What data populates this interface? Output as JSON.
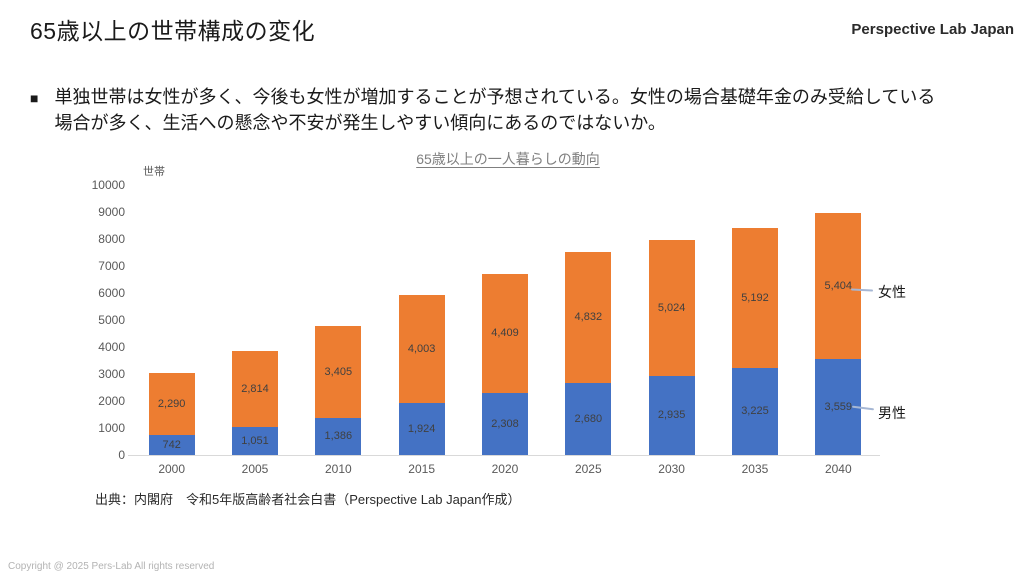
{
  "slide": {
    "title": "65歳以上の世帯構成の変化",
    "logo": "Perspective Lab Japan",
    "bullet": {
      "marker": "■",
      "lines": [
        "単独世帯は女性が多く、今後も女性が増加することが予想されている。女性の場合基礎年金のみ受給している",
        "場合が多く、生活への懸念や不安が発生しやすい傾向にあるのではないか。"
      ]
    },
    "source": "出典：内閣府　令和5年版高齢者社会白書（Perspective Lab Japan作成）",
    "copyright": "Copyright @ 2025 Pers-Lab All rights reserved"
  },
  "chart_data": {
    "type": "bar",
    "stacked": true,
    "title": "65歳以上の一人暮らしの動向",
    "unit_label": "世帯",
    "categories": [
      "2000",
      "2005",
      "2010",
      "2015",
      "2020",
      "2025",
      "2030",
      "2035",
      "2040"
    ],
    "series": [
      {
        "name": "男性",
        "color": "#4472C4",
        "values": [
          742,
          1051,
          1386,
          1924,
          2308,
          2680,
          2935,
          3225,
          3559
        ]
      },
      {
        "name": "女性",
        "color": "#ED7D31",
        "values": [
          2290,
          2814,
          3405,
          4003,
          4409,
          4832,
          5024,
          5192,
          5404
        ]
      }
    ],
    "ylim": [
      0,
      10000
    ],
    "ytick_step": 1000,
    "grid": false,
    "legend_position": "right-annotations",
    "annotations": [
      {
        "label": "女性",
        "series": "女性"
      },
      {
        "label": "男性",
        "series": "男性"
      }
    ],
    "colors": {
      "data_label": "#404040",
      "axis_text": "#595959",
      "axis_line": "#D9D9D9",
      "chart_title": "#7F7F7F",
      "connector": "#A6B7D4"
    }
  }
}
